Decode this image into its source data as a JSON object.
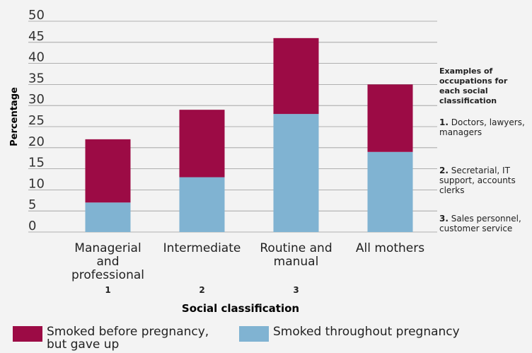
{
  "chart_data": {
    "type": "stacked_bar",
    "y_label": "Percentage",
    "x_label": "Social classification",
    "categories": [
      "Managerial and professional",
      "Intermediate",
      "Routine and manual",
      "All mothers"
    ],
    "category_numbers": [
      "1",
      "2",
      "3",
      null
    ],
    "series": [
      {
        "name": "Smoked throughout pregnancy",
        "color": "#80b3d2",
        "values": [
          7,
          13,
          28,
          19
        ]
      },
      {
        "name": "Smoked before pregnancy, but gave up",
        "color": "#9c0b45",
        "values": [
          15,
          16,
          18,
          16
        ]
      }
    ],
    "ylim": [
      0,
      50
    ],
    "yticks": [
      0,
      5,
      10,
      15,
      20,
      25,
      30,
      35,
      40,
      45,
      50
    ],
    "grid": true,
    "legend_order": [
      1,
      0
    ]
  },
  "sidebar": {
    "title": "Examples of occupations for each social classification",
    "items": [
      {
        "number": "1.",
        "text": "Doctors, lawyers, managers"
      },
      {
        "number": "2.",
        "text": "Secretarial, IT support, accounts clerks"
      },
      {
        "number": "3.",
        "text": "Sales personnel, customer service"
      }
    ]
  }
}
